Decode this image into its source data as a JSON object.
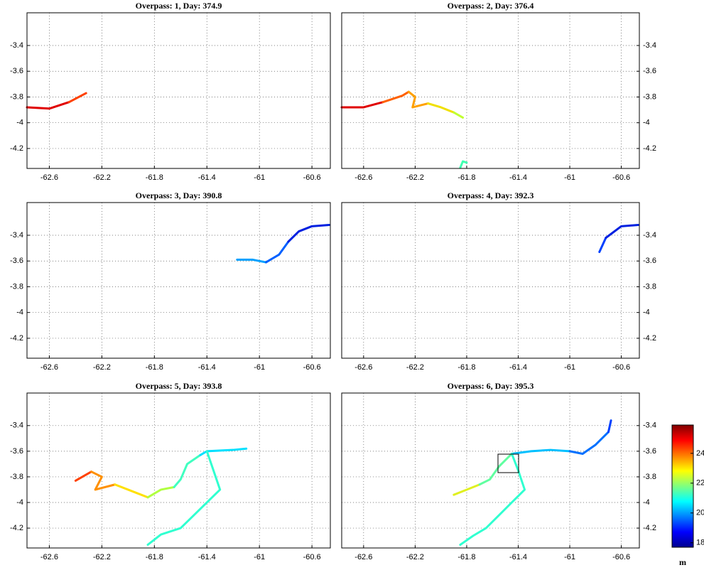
{
  "chart_data": [
    {
      "type": "line",
      "title": "Overpass: 1, Day: 374.9",
      "xlim": [
        -62.77,
        -60.46
      ],
      "ylim": [
        -4.355,
        -3.146
      ],
      "xticks": [
        -62.6,
        -62.2,
        -61.8,
        -61.4,
        -61,
        -60.6
      ],
      "yticks": [
        -4.2,
        -4,
        -3.8,
        -3.6,
        -3.4
      ],
      "grid": true,
      "y_axis_position": "left",
      "series": [
        {
          "color": "#e00000",
          "x": [
            -62.77,
            -62.6,
            -62.45
          ],
          "y": [
            -3.88,
            -3.89,
            -3.84
          ]
        },
        {
          "color": "#ff4000",
          "x": [
            -62.45,
            -62.32
          ],
          "y": [
            -3.84,
            -3.77
          ]
        }
      ]
    },
    {
      "type": "line",
      "title": "Overpass: 2, Day: 376.4",
      "xlim": [
        -62.77,
        -60.46
      ],
      "ylim": [
        -4.355,
        -3.146
      ],
      "xticks": [
        -62.6,
        -62.2,
        -61.8,
        -61.4,
        -61,
        -60.6
      ],
      "yticks": [
        -4.2,
        -4,
        -3.8,
        -3.6,
        -3.4
      ],
      "grid": true,
      "y_axis_position": "right",
      "series": [
        {
          "color": "#e00000",
          "x": [
            -62.77,
            -62.6,
            -62.45
          ],
          "y": [
            -3.88,
            -3.88,
            -3.84
          ]
        },
        {
          "color": "#ff6000",
          "x": [
            -62.45,
            -62.3,
            -62.25
          ],
          "y": [
            -3.84,
            -3.79,
            -3.76
          ]
        },
        {
          "color": "#ffa000",
          "x": [
            -62.25,
            -62.2,
            -62.22,
            -62.1
          ],
          "y": [
            -3.76,
            -3.8,
            -3.88,
            -3.85
          ]
        },
        {
          "color": "#f0e000",
          "x": [
            -62.1,
            -62.0,
            -61.9
          ],
          "y": [
            -3.85,
            -3.88,
            -3.92
          ]
        },
        {
          "color": "#c0ff30",
          "x": [
            -61.9,
            -61.83
          ],
          "y": [
            -3.92,
            -3.96
          ]
        },
        {
          "color": "#40ffb0",
          "x": [
            -61.85,
            -61.83,
            -61.8
          ],
          "y": [
            -4.35,
            -4.3,
            -4.31
          ]
        }
      ]
    },
    {
      "type": "line",
      "title": "Overpass: 3, Day: 390.8",
      "xlim": [
        -62.77,
        -60.46
      ],
      "ylim": [
        -4.355,
        -3.146
      ],
      "xticks": [
        -62.6,
        -62.2,
        -61.8,
        -61.4,
        -61,
        -60.6
      ],
      "yticks": [
        -4.2,
        -4,
        -3.8,
        -3.6,
        -3.4
      ],
      "grid": true,
      "y_axis_position": "left",
      "series": [
        {
          "color": "#00a0ff",
          "x": [
            -61.17,
            -61.05,
            -60.95
          ],
          "y": [
            -3.59,
            -3.59,
            -3.61
          ]
        },
        {
          "color": "#0060ff",
          "x": [
            -60.95,
            -60.85,
            -60.78
          ],
          "y": [
            -3.61,
            -3.55,
            -3.45
          ]
        },
        {
          "color": "#0020e0",
          "x": [
            -60.78,
            -60.7,
            -60.6,
            -60.47
          ],
          "y": [
            -3.45,
            -3.37,
            -3.33,
            -3.32
          ]
        }
      ]
    },
    {
      "type": "line",
      "title": "Overpass: 4, Day: 392.3",
      "xlim": [
        -62.77,
        -60.46
      ],
      "ylim": [
        -4.355,
        -3.146
      ],
      "xticks": [
        -62.6,
        -62.2,
        -61.8,
        -61.4,
        -61,
        -60.6
      ],
      "yticks": [
        -4.2,
        -4,
        -3.8,
        -3.6,
        -3.4
      ],
      "grid": true,
      "y_axis_position": "right",
      "series": [
        {
          "color": "#0040ff",
          "x": [
            -60.77,
            -60.72
          ],
          "y": [
            -3.53,
            -3.42
          ]
        },
        {
          "color": "#0020e0",
          "x": [
            -60.72,
            -60.6,
            -60.47
          ],
          "y": [
            -3.42,
            -3.33,
            -3.32
          ]
        }
      ]
    },
    {
      "type": "line",
      "title": "Overpass: 5, Day: 393.8",
      "xlim": [
        -62.77,
        -60.46
      ],
      "ylim": [
        -4.355,
        -3.146
      ],
      "xticks": [
        -62.6,
        -62.2,
        -61.8,
        -61.4,
        -61,
        -60.6
      ],
      "yticks": [
        -4.2,
        -4,
        -3.8,
        -3.6,
        -3.4
      ],
      "grid": true,
      "y_axis_position": "left",
      "series": [
        {
          "color": "#ff4000",
          "x": [
            -62.4,
            -62.28
          ],
          "y": [
            -3.83,
            -3.76
          ]
        },
        {
          "color": "#ff9000",
          "x": [
            -62.28,
            -62.2,
            -62.25,
            -62.1
          ],
          "y": [
            -3.76,
            -3.8,
            -3.9,
            -3.86
          ]
        },
        {
          "color": "#ffe000",
          "x": [
            -62.1,
            -61.95,
            -61.85
          ],
          "y": [
            -3.86,
            -3.92,
            -3.96
          ]
        },
        {
          "color": "#b0ff40",
          "x": [
            -61.85,
            -61.75,
            -61.65
          ],
          "y": [
            -3.96,
            -3.9,
            -3.88
          ]
        },
        {
          "color": "#40ffc0",
          "x": [
            -61.65,
            -61.6,
            -61.55,
            -61.45
          ],
          "y": [
            -3.88,
            -3.82,
            -3.7,
            -3.63
          ]
        },
        {
          "color": "#00e0ff",
          "x": [
            -61.45,
            -61.4,
            -61.2,
            -61.1
          ],
          "y": [
            -3.63,
            -3.6,
            -3.59,
            -3.58
          ]
        },
        {
          "color": "#30ffd0",
          "x": [
            -61.4,
            -61.35,
            -61.3,
            -61.4,
            -61.5,
            -61.6,
            -61.75,
            -61.85
          ],
          "y": [
            -3.6,
            -3.75,
            -3.9,
            -4.0,
            -4.1,
            -4.2,
            -4.25,
            -4.33
          ]
        }
      ]
    },
    {
      "type": "line",
      "title": "Overpass: 6, Day: 395.3",
      "xlim": [
        -62.77,
        -60.46
      ],
      "ylim": [
        -4.355,
        -3.146
      ],
      "xticks": [
        -62.6,
        -62.2,
        -61.8,
        -61.4,
        -61,
        -60.6
      ],
      "yticks": [
        -4.2,
        -4,
        -3.8,
        -3.6,
        -3.4
      ],
      "grid": true,
      "y_axis_position": "right",
      "series": [
        {
          "color": "#e0f020",
          "x": [
            -61.9,
            -61.8,
            -61.7
          ],
          "y": [
            -3.94,
            -3.9,
            -3.86
          ]
        },
        {
          "color": "#60ffa0",
          "x": [
            -61.7,
            -61.62,
            -61.55,
            -61.45
          ],
          "y": [
            -3.86,
            -3.82,
            -3.72,
            -3.62
          ]
        },
        {
          "color": "#00c0ff",
          "x": [
            -61.45,
            -61.3,
            -61.15,
            -61.0
          ],
          "y": [
            -3.62,
            -3.6,
            -3.59,
            -3.6
          ]
        },
        {
          "color": "#0070ff",
          "x": [
            -61.0,
            -60.9,
            -60.8,
            -60.7
          ],
          "y": [
            -3.6,
            -3.62,
            -3.55,
            -3.45
          ]
        },
        {
          "color": "#0040ff",
          "x": [
            -60.7,
            -60.68
          ],
          "y": [
            -3.45,
            -3.36
          ]
        },
        {
          "color": "#30ffd0",
          "x": [
            -61.45,
            -61.4,
            -61.35,
            -61.45,
            -61.55,
            -61.65,
            -61.75,
            -61.85
          ],
          "y": [
            -3.62,
            -3.75,
            -3.9,
            -4.0,
            -4.1,
            -4.2,
            -4.26,
            -4.33
          ]
        }
      ]
    }
  ],
  "colorbar": {
    "label": "m",
    "lim": [
      17.7,
      25.9
    ],
    "ticks": [
      18,
      20,
      22,
      24
    ]
  }
}
